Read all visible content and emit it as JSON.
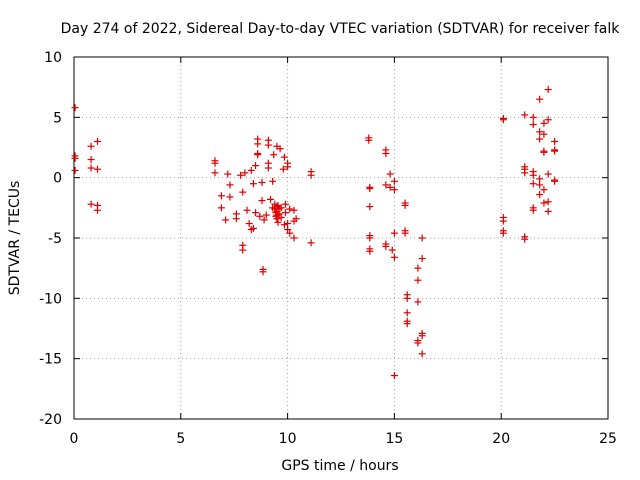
{
  "chart_data": {
    "type": "scatter",
    "title": "Day 274 of 2022, Sidereal Day-to-day VTEC variation (SDTVAR) for receiver falk",
    "xlabel": "GPS time / hours",
    "ylabel": "SDTVAR / TECUs",
    "xlim": [
      0,
      25
    ],
    "ylim": [
      -20,
      10
    ],
    "xticks": [
      0,
      5,
      10,
      15,
      20,
      25
    ],
    "yticks": [
      -20,
      -15,
      -10,
      -5,
      0,
      5,
      10
    ],
    "xtick_labels": [
      "0",
      "5",
      "10",
      "15",
      "20",
      "25"
    ],
    "ytick_labels": [
      "-20",
      "-15",
      "-10",
      "-5",
      "0",
      "5",
      "10"
    ],
    "grid": true,
    "marker": "plus",
    "color": "#e00000",
    "series": [
      {
        "name": "SDTVAR",
        "points": [
          [
            0.05,
            5.8
          ],
          [
            0.05,
            1.8
          ],
          [
            0.05,
            1.6
          ],
          [
            0.05,
            0.6
          ],
          [
            0.8,
            2.6
          ],
          [
            0.8,
            1.5
          ],
          [
            0.8,
            0.8
          ],
          [
            0.8,
            -2.2
          ],
          [
            1.1,
            3.0
          ],
          [
            1.1,
            0.7
          ],
          [
            1.1,
            -2.3
          ],
          [
            1.1,
            -2.7
          ],
          [
            6.6,
            1.4
          ],
          [
            6.6,
            1.2
          ],
          [
            6.6,
            0.4
          ],
          [
            6.9,
            -1.5
          ],
          [
            6.9,
            -2.5
          ],
          [
            7.1,
            -3.5
          ],
          [
            7.2,
            0.3
          ],
          [
            7.3,
            -0.6
          ],
          [
            7.3,
            -1.6
          ],
          [
            7.6,
            -3.0
          ],
          [
            7.6,
            -3.4
          ],
          [
            7.8,
            0.2
          ],
          [
            7.9,
            -1.2
          ],
          [
            7.9,
            -5.6
          ],
          [
            7.9,
            -6.0
          ],
          [
            8.0,
            0.4
          ],
          [
            8.1,
            -2.7
          ],
          [
            8.2,
            -3.8
          ],
          [
            8.3,
            0.6
          ],
          [
            8.3,
            -4.3
          ],
          [
            8.4,
            -4.2
          ],
          [
            8.4,
            -0.5
          ],
          [
            8.5,
            1.0
          ],
          [
            8.5,
            -2.9
          ],
          [
            8.6,
            3.2
          ],
          [
            8.6,
            2.8
          ],
          [
            8.6,
            2.0
          ],
          [
            8.6,
            1.9
          ],
          [
            8.7,
            -3.2
          ],
          [
            8.8,
            -0.4
          ],
          [
            8.8,
            -1.9
          ],
          [
            8.85,
            -7.6
          ],
          [
            8.85,
            -7.8
          ],
          [
            8.9,
            -3.5
          ],
          [
            9.0,
            -3.1
          ],
          [
            9.1,
            3.1
          ],
          [
            9.1,
            2.7
          ],
          [
            9.1,
            1.2
          ],
          [
            9.1,
            0.8
          ],
          [
            9.2,
            -1.8
          ],
          [
            9.3,
            -0.3
          ],
          [
            9.3,
            -2.5
          ],
          [
            9.35,
            1.9
          ],
          [
            9.4,
            -2.2
          ],
          [
            9.4,
            -2.6
          ],
          [
            9.45,
            -2.9
          ],
          [
            9.45,
            -3.2
          ],
          [
            9.5,
            2.6
          ],
          [
            9.5,
            -2.4
          ],
          [
            9.5,
            -2.8
          ],
          [
            9.5,
            -3.1
          ],
          [
            9.5,
            -3.4
          ],
          [
            9.55,
            -3.7
          ],
          [
            9.55,
            -2.3
          ],
          [
            9.6,
            -2.6
          ],
          [
            9.6,
            -3.0
          ],
          [
            9.65,
            2.4
          ],
          [
            9.7,
            -2.5
          ],
          [
            9.7,
            -3.3
          ],
          [
            9.8,
            0.7
          ],
          [
            9.85,
            1.7
          ],
          [
            9.85,
            -3.9
          ],
          [
            9.9,
            -2.2
          ],
          [
            9.9,
            -2.9
          ],
          [
            10.0,
            1.2
          ],
          [
            10.0,
            0.9
          ],
          [
            10.0,
            -3.8
          ],
          [
            10.0,
            -4.3
          ],
          [
            10.1,
            -4.6
          ],
          [
            10.1,
            -2.6
          ],
          [
            10.3,
            -2.7
          ],
          [
            10.3,
            -3.6
          ],
          [
            10.3,
            -5.0
          ],
          [
            10.4,
            -3.4
          ],
          [
            11.1,
            0.5
          ],
          [
            11.1,
            0.2
          ],
          [
            11.1,
            -5.4
          ],
          [
            13.8,
            3.3
          ],
          [
            13.8,
            3.1
          ],
          [
            13.85,
            -0.8
          ],
          [
            13.85,
            -0.9
          ],
          [
            13.85,
            -2.4
          ],
          [
            13.85,
            -4.8
          ],
          [
            13.85,
            -5.0
          ],
          [
            13.85,
            -5.9
          ],
          [
            13.85,
            -6.1
          ],
          [
            14.6,
            2.3
          ],
          [
            14.6,
            2.0
          ],
          [
            14.6,
            -0.6
          ],
          [
            14.6,
            -5.5
          ],
          [
            14.6,
            -5.7
          ],
          [
            14.8,
            -0.8
          ],
          [
            14.8,
            0.3
          ],
          [
            14.9,
            -6.0
          ],
          [
            15.0,
            -0.3
          ],
          [
            15.0,
            -1.0
          ],
          [
            15.0,
            -4.6
          ],
          [
            15.0,
            -6.6
          ],
          [
            15.0,
            -16.4
          ],
          [
            15.5,
            -2.1
          ],
          [
            15.5,
            -2.3
          ],
          [
            15.5,
            -4.4
          ],
          [
            15.5,
            -4.6
          ],
          [
            15.6,
            -9.7
          ],
          [
            15.6,
            -10.0
          ],
          [
            15.6,
            -11.2
          ],
          [
            15.6,
            -11.9
          ],
          [
            15.6,
            -12.1
          ],
          [
            16.1,
            -7.5
          ],
          [
            16.1,
            -8.5
          ],
          [
            16.1,
            -10.3
          ],
          [
            16.1,
            -13.5
          ],
          [
            16.1,
            -13.7
          ],
          [
            16.3,
            -5.0
          ],
          [
            16.3,
            -6.7
          ],
          [
            16.3,
            -12.9
          ],
          [
            16.3,
            -13.1
          ],
          [
            16.3,
            -14.6
          ],
          [
            20.1,
            4.9
          ],
          [
            20.1,
            4.8
          ],
          [
            20.1,
            -3.3
          ],
          [
            20.1,
            -3.6
          ],
          [
            20.1,
            -4.4
          ],
          [
            20.1,
            -4.6
          ],
          [
            21.1,
            5.2
          ],
          [
            21.1,
            0.9
          ],
          [
            21.1,
            0.7
          ],
          [
            21.1,
            0.4
          ],
          [
            21.1,
            -4.9
          ],
          [
            21.1,
            -5.1
          ],
          [
            21.5,
            5.0
          ],
          [
            21.5,
            4.4
          ],
          [
            21.5,
            0.5
          ],
          [
            21.5,
            0.2
          ],
          [
            21.5,
            -0.5
          ],
          [
            21.5,
            -2.5
          ],
          [
            21.5,
            -2.7
          ],
          [
            21.8,
            6.5
          ],
          [
            21.8,
            3.8
          ],
          [
            21.8,
            3.2
          ],
          [
            21.8,
            -0.1
          ],
          [
            21.8,
            -0.6
          ],
          [
            21.8,
            -1.4
          ],
          [
            22.0,
            4.5
          ],
          [
            22.0,
            3.6
          ],
          [
            22.0,
            2.2
          ],
          [
            22.0,
            2.1
          ],
          [
            22.0,
            -1.0
          ],
          [
            22.0,
            -2.1
          ],
          [
            22.2,
            7.3
          ],
          [
            22.2,
            4.8
          ],
          [
            22.2,
            0.3
          ],
          [
            22.2,
            -2.0
          ],
          [
            22.2,
            -2.8
          ],
          [
            22.5,
            3.0
          ],
          [
            22.5,
            2.3
          ],
          [
            22.5,
            2.2
          ],
          [
            22.5,
            -0.2
          ],
          [
            22.5,
            -0.3
          ]
        ]
      }
    ]
  }
}
